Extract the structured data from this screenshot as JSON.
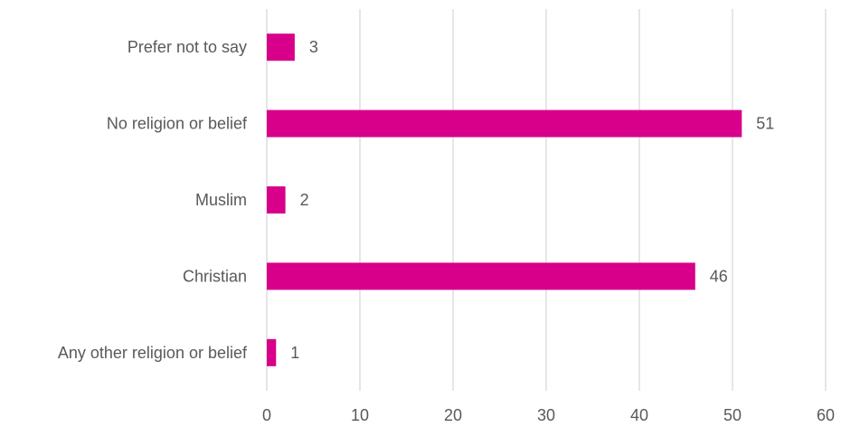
{
  "chart_data": {
    "type": "bar",
    "orientation": "horizontal",
    "title": "",
    "xlabel": "",
    "ylabel": "",
    "categories": [
      "Prefer not to say",
      "No religion or belief",
      "Muslim",
      "Christian",
      "Any other religion or belief"
    ],
    "values": [
      3,
      51,
      2,
      46,
      1
    ],
    "xlim": [
      0,
      60
    ],
    "xticks": [
      0,
      10,
      20,
      30,
      40,
      50,
      60
    ],
    "xtick_labels": [
      "0",
      "10",
      "20",
      "30",
      "40",
      "50",
      "60"
    ],
    "grid": "vertical",
    "legend": "none",
    "data_labels": true,
    "bar_color": "#d8008a"
  }
}
